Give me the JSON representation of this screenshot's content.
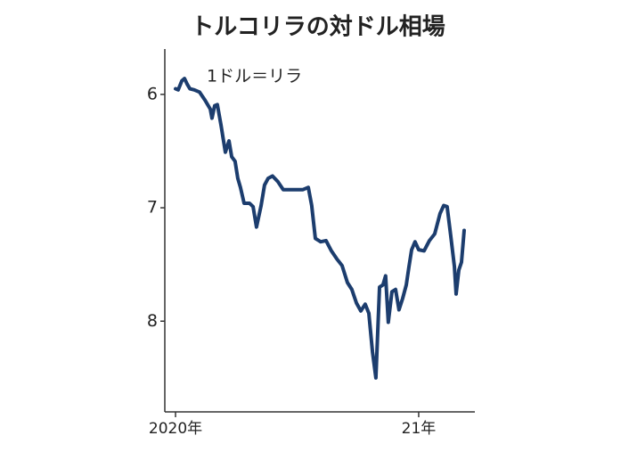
{
  "chart_data": {
    "type": "line",
    "title": "トルコリラの対ドル相場",
    "annotation": "1ドル＝リラ",
    "x": [
      2020.0,
      2020.011,
      2020.026,
      2020.037,
      2020.048,
      2020.059,
      2020.077,
      2020.099,
      2020.121,
      2020.143,
      2020.15,
      2020.161,
      2020.172,
      2020.187,
      2020.205,
      2020.22,
      2020.231,
      2020.245,
      2020.256,
      2020.267,
      2020.282,
      2020.304,
      2020.319,
      2020.333,
      2020.352,
      2020.366,
      2020.381,
      2020.399,
      2020.421,
      2020.443,
      2020.487,
      2020.524,
      2020.546,
      2020.56,
      2020.575,
      2020.597,
      2020.619,
      2020.641,
      2020.663,
      2020.685,
      2020.707,
      2020.725,
      2020.744,
      2020.762,
      2020.78,
      2020.795,
      2020.81,
      2020.824,
      2020.839,
      2020.853,
      2020.864,
      2020.875,
      2020.89,
      2020.905,
      2020.919,
      2020.934,
      2020.949,
      2020.96,
      2020.971,
      2020.985,
      2021.0,
      2021.022,
      2021.044,
      2021.066,
      2021.088,
      2021.103,
      2021.117,
      2021.132,
      2021.147,
      2021.154,
      2021.165,
      2021.176,
      2021.187
    ],
    "series": [
      {
        "color": "#1c3d6e",
        "values": [
          5.95,
          5.96,
          5.88,
          5.86,
          5.91,
          5.95,
          5.96,
          5.98,
          6.05,
          6.13,
          6.21,
          6.1,
          6.09,
          6.27,
          6.51,
          6.41,
          6.55,
          6.59,
          6.74,
          6.82,
          6.96,
          6.96,
          6.99,
          7.17,
          6.98,
          6.8,
          6.74,
          6.72,
          6.77,
          6.84,
          6.84,
          6.84,
          6.82,
          6.98,
          7.27,
          7.3,
          7.29,
          7.38,
          7.45,
          7.51,
          7.66,
          7.72,
          7.84,
          7.91,
          7.85,
          7.93,
          8.27,
          8.5,
          7.7,
          7.68,
          7.6,
          8.01,
          7.74,
          7.72,
          7.9,
          7.8,
          7.68,
          7.52,
          7.37,
          7.3,
          7.37,
          7.38,
          7.29,
          7.23,
          7.05,
          6.98,
          6.99,
          7.25,
          7.52,
          7.76,
          7.55,
          7.48,
          7.2
        ]
      }
    ],
    "xlim": [
      2019.956,
      2021.231
    ],
    "xticks": [
      {
        "value": 2020,
        "label": "2020年"
      },
      {
        "value": 2021,
        "label": "21年"
      }
    ],
    "ylim": [
      5.6,
      8.8
    ],
    "yticks": [
      6,
      7,
      8
    ],
    "y_inverted": true
  }
}
